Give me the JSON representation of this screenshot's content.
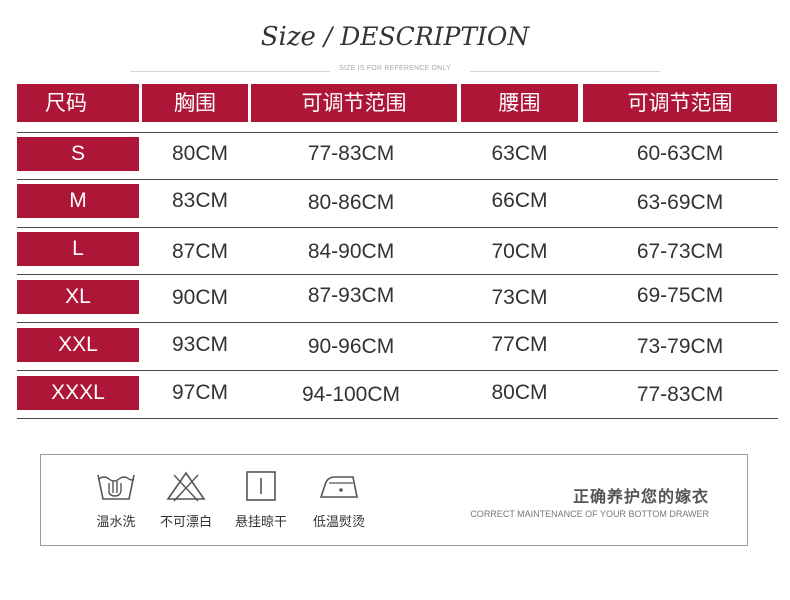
{
  "title": {
    "size": "Size",
    "sep": " / ",
    "description": "DESCRIPTION"
  },
  "subtitle": "SIZE IS FOR REFERENCE ONLY",
  "table": {
    "headers": [
      "尺码",
      "胸围",
      "可调节范围",
      "腰围",
      "可调节范围"
    ],
    "rows": [
      {
        "size": "S",
        "bust": "80CM",
        "bust_range": "77-83CM",
        "waist": "63CM",
        "waist_range": "60-63CM"
      },
      {
        "size": "M",
        "bust": "83CM",
        "bust_range": "80-86CM",
        "waist": "66CM",
        "waist_range": "63-69CM"
      },
      {
        "size": "L",
        "bust": "87CM",
        "bust_range": "84-90CM",
        "waist": "70CM",
        "waist_range": "67-73CM"
      },
      {
        "size": "XL",
        "bust": "90CM",
        "bust_range": "87-93CM",
        "waist": "73CM",
        "waist_range": "69-75CM"
      },
      {
        "size": "XXL",
        "bust": "93CM",
        "bust_range": "90-96CM",
        "waist": "77CM",
        "waist_range": "73-79CM"
      },
      {
        "size": "XXXL",
        "bust": "97CM",
        "bust_range": "94-100CM",
        "waist": "80CM",
        "waist_range": "77-83CM"
      }
    ]
  },
  "care": {
    "items": [
      {
        "icon": "warm-wash-icon",
        "label": "温水洗"
      },
      {
        "icon": "no-bleach-icon",
        "label": "不可漂白"
      },
      {
        "icon": "hang-dry-icon",
        "label": "悬挂晾干"
      },
      {
        "icon": "low-iron-icon",
        "label": "低温熨烫"
      }
    ],
    "title": "正确养护您的嫁衣",
    "subtitle": "CORRECT MAINTENANCE OF YOUR BOTTOM DRAWER"
  },
  "colors": {
    "accent": "#ad1636",
    "text": "#333333",
    "line": "#4a4a4a"
  }
}
